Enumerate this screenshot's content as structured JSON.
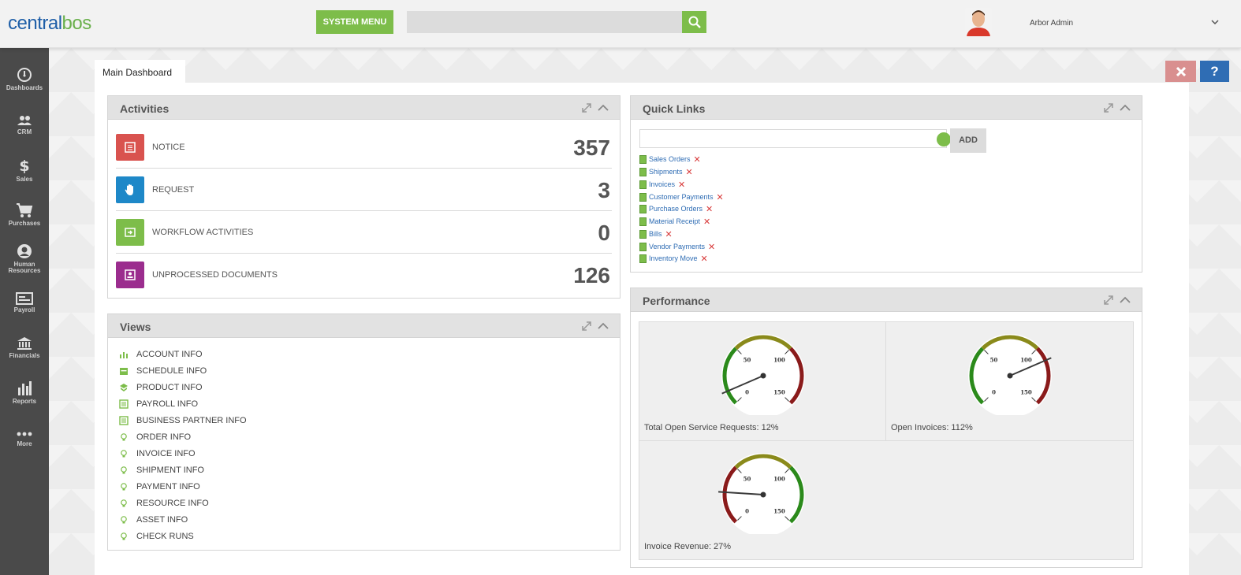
{
  "header": {
    "logo_part1": "central",
    "logo_part2": "bos",
    "system_menu_label": "SYSTEM MENU",
    "search_placeholder": "",
    "search_icon": "search-icon",
    "user_name": "Arbor Admin",
    "dropdown_icon": "chevron-down-icon"
  },
  "sidebar": {
    "items": [
      {
        "label": "Dashboards",
        "icon": "gauge-icon"
      },
      {
        "label": "CRM",
        "icon": "users-icon"
      },
      {
        "label": "Sales",
        "icon": "dollar-icon"
      },
      {
        "label": "Purchases",
        "icon": "cart-icon"
      },
      {
        "label": "Human Resources",
        "icon": "person-icon"
      },
      {
        "label": "Payroll",
        "icon": "check-icon"
      },
      {
        "label": "Financials",
        "icon": "bank-icon"
      },
      {
        "label": "Reports",
        "icon": "bar-chart-icon"
      },
      {
        "label": "More",
        "icon": "ellipsis-icon"
      }
    ]
  },
  "tabs": {
    "main_dashboard": "Main Dashboard"
  },
  "toolbar": {
    "close_icon": "close-icon",
    "help_label": "?"
  },
  "activities": {
    "title": "Activities",
    "rows": [
      {
        "label": "NOTICE",
        "count": "357",
        "color": "#d9534f",
        "icon": "notice-icon"
      },
      {
        "label": "REQUEST",
        "count": "3",
        "color": "#1e88c8",
        "icon": "hand-icon"
      },
      {
        "label": "WORKFLOW ACTIVITIES",
        "count": "0",
        "color": "#7dbd4a",
        "icon": "workflow-icon"
      },
      {
        "label": "UNPROCESSED DOCUMENTS",
        "count": "126",
        "color": "#9b2d8e",
        "icon": "document-icon"
      }
    ]
  },
  "views": {
    "title": "Views",
    "items": [
      "ACCOUNT INFO",
      "SCHEDULE INFO",
      "PRODUCT INFO",
      "PAYROLL INFO",
      "BUSINESS PARTNER INFO",
      "ORDER INFO",
      "INVOICE INFO",
      "SHIPMENT INFO",
      "PAYMENT INFO",
      "RESOURCE INFO",
      "ASSET INFO",
      "CHECK RUNS"
    ]
  },
  "quick_links": {
    "title": "Quick Links",
    "input_value": "",
    "add_label": "ADD",
    "items": [
      "Sales Orders",
      "Shipments",
      "Invoices",
      "Customer Payments",
      "Purchase Orders",
      "Material Receipt",
      "Bills",
      "Vendor Payments",
      "Inventory Move"
    ]
  },
  "performance": {
    "title": "Performance",
    "gauges": [
      {
        "label": "Total Open Service Requests: 12%",
        "value": 12,
        "scheme": "good-low"
      },
      {
        "label": "Open Invoices: 112%",
        "value": 112,
        "scheme": "good-low"
      },
      {
        "label": "Invoice Revenue: 27%",
        "value": 27,
        "scheme": "good-high"
      }
    ],
    "tick_labels": [
      "0",
      "50",
      "100",
      "150"
    ]
  },
  "colors": {
    "accent_green": "#7dbd4a",
    "brand_blue": "#1f5fa8",
    "sidebar_bg": "#4a4a4a",
    "gauge_green": "#2b8a1b",
    "gauge_olive": "#8a8a1b",
    "gauge_red": "#8a1b1b"
  }
}
